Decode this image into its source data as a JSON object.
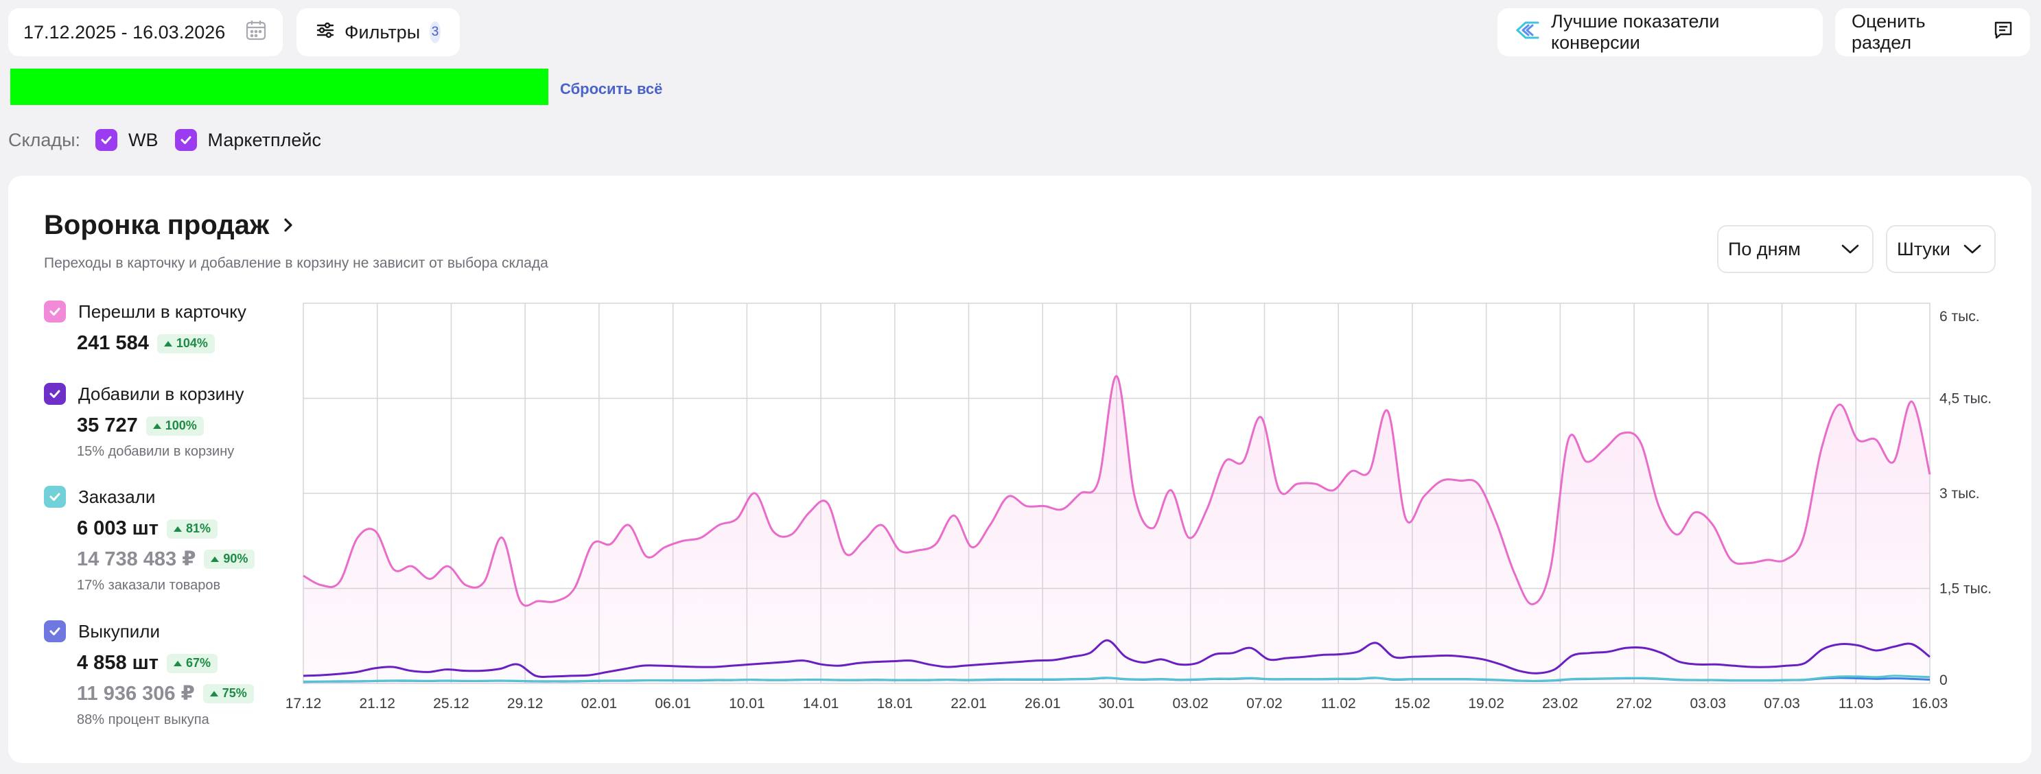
{
  "toolbar": {
    "date_range": "17.12.2025 - 16.03.2026",
    "filters_label": "Фильтры",
    "filters_count": "3",
    "best_conversion_label": "Лучшие показатели конверсии",
    "rate_section_label": "Оценить раздел",
    "reset_all": "Сбросить всё"
  },
  "warehouses": {
    "label": "Склады:",
    "items": [
      {
        "label": "WB",
        "checked": true
      },
      {
        "label": "Маркетплейс",
        "checked": true
      }
    ]
  },
  "funnel": {
    "title": "Воронка продаж",
    "subtitle": "Переходы в карточку и добавление в корзину не зависит от выбора склада",
    "period_select": "По дням",
    "unit_select": "Штуки",
    "metrics": [
      {
        "label": "Перешли в карточку",
        "value": "241 584",
        "change": "104%",
        "color": "#f07cd0"
      },
      {
        "label": "Добавили в корзину",
        "value": "35 727",
        "change": "100%",
        "note": "15% добавили в корзину",
        "color": "#6f2fc9"
      },
      {
        "label": "Заказали",
        "value": "6 003 шт",
        "change": "81%",
        "value2": "14 738 483 ₽",
        "change2": "90%",
        "note": "17% заказали товаров",
        "color": "#72d0d8"
      },
      {
        "label": "Выкупили",
        "value": "4 858 шт",
        "change": "67%",
        "value2": "11 936 306 ₽",
        "change2": "75%",
        "note": "88% процент выкупа",
        "color": "#6e78e0"
      }
    ]
  },
  "chart_data": {
    "type": "line",
    "x_ticks": [
      "17.12",
      "21.12",
      "25.12",
      "29.12",
      "02.01",
      "06.01",
      "10.01",
      "14.01",
      "18.01",
      "22.01",
      "26.01",
      "30.01",
      "03.02",
      "07.02",
      "11.02",
      "15.02",
      "19.02",
      "23.02",
      "27.02",
      "03.03",
      "07.03",
      "11.03",
      "16.03"
    ],
    "y_ticks": [
      "0",
      "1,5 тыс.",
      "3 тыс.",
      "4,5 тыс.",
      "6 тыс."
    ],
    "ylim": [
      0,
      6000
    ],
    "grid": true,
    "series": [
      {
        "name": "Перешли в карточку",
        "color": "#e96ccb",
        "values": [
          1700,
          1550,
          1600,
          2300,
          2400,
          1800,
          1850,
          1650,
          1850,
          1550,
          1600,
          2300,
          1300,
          1300,
          1300,
          1500,
          2200,
          2200,
          2500,
          2000,
          2150,
          2250,
          2300,
          2500,
          2600,
          3000,
          2400,
          2350,
          2700,
          2850,
          2050,
          2250,
          2500,
          2100,
          2100,
          2200,
          2650,
          2150,
          2500,
          2950,
          2800,
          2800,
          2750,
          3000,
          3200,
          4850,
          2950,
          2450,
          3050,
          2300,
          2750,
          3500,
          3500,
          4200,
          3050,
          3150,
          3150,
          3050,
          3350,
          3350,
          4300,
          2600,
          2950,
          3200,
          3200,
          3150,
          2550,
          1750,
          1250,
          1800,
          3850,
          3500,
          3700,
          3950,
          3800,
          2800,
          2350,
          2700,
          2500,
          1950,
          1900,
          1950,
          1950,
          2300,
          3700,
          4400,
          3850,
          3850,
          3500,
          4450,
          3300
        ]
      },
      {
        "name": "Добавили в корзину",
        "color": "#6a1fc2",
        "values": [
          120,
          130,
          150,
          180,
          240,
          260,
          200,
          180,
          220,
          200,
          200,
          230,
          300,
          120,
          110,
          120,
          130,
          180,
          230,
          280,
          280,
          270,
          260,
          260,
          280,
          300,
          320,
          340,
          360,
          300,
          280,
          320,
          340,
          350,
          360,
          300,
          260,
          280,
          300,
          320,
          340,
          360,
          370,
          420,
          480,
          680,
          420,
          330,
          380,
          300,
          320,
          460,
          480,
          560,
          380,
          400,
          420,
          450,
          460,
          500,
          640,
          420,
          420,
          430,
          440,
          420,
          380,
          300,
          200,
          160,
          220,
          440,
          480,
          500,
          560,
          560,
          480,
          340,
          300,
          300,
          280,
          260,
          260,
          280,
          320,
          540,
          620,
          600,
          520,
          580,
          620,
          420
        ]
      },
      {
        "name": "Заказали",
        "color": "#55c4d2",
        "values": [
          30,
          30,
          35,
          35,
          40,
          45,
          45,
          40,
          45,
          40,
          40,
          45,
          40,
          35,
          35,
          35,
          40,
          45,
          45,
          50,
          50,
          50,
          50,
          55,
          55,
          60,
          55,
          55,
          60,
          60,
          55,
          55,
          60,
          55,
          55,
          55,
          60,
          55,
          60,
          65,
          65,
          65,
          65,
          70,
          75,
          90,
          70,
          65,
          70,
          60,
          65,
          75,
          75,
          85,
          70,
          70,
          70,
          70,
          75,
          75,
          90,
          65,
          70,
          70,
          70,
          70,
          65,
          55,
          45,
          40,
          50,
          70,
          75,
          80,
          85,
          85,
          75,
          60,
          55,
          55,
          50,
          50,
          50,
          55,
          60,
          90,
          110,
          110,
          100,
          120,
          110,
          100
        ]
      },
      {
        "name": "Выкупили",
        "color": "#3f7fe0",
        "values": [
          25,
          28,
          30,
          32,
          38,
          42,
          40,
          38,
          42,
          38,
          38,
          42,
          38,
          32,
          32,
          32,
          38,
          42,
          42,
          48,
          48,
          46,
          46,
          52,
          52,
          58,
          52,
          52,
          58,
          58,
          52,
          52,
          56,
          52,
          52,
          52,
          58,
          52,
          56,
          60,
          60,
          60,
          60,
          66,
          70,
          86,
          66,
          60,
          66,
          56,
          60,
          70,
          70,
          80,
          66,
          66,
          66,
          66,
          70,
          70,
          86,
          60,
          66,
          66,
          66,
          66,
          60,
          52,
          42,
          38,
          46,
          66,
          70,
          76,
          80,
          80,
          70,
          56,
          52,
          52,
          46,
          46,
          46,
          52,
          56,
          78,
          86,
          80,
          72,
          80,
          72,
          60
        ]
      }
    ]
  }
}
